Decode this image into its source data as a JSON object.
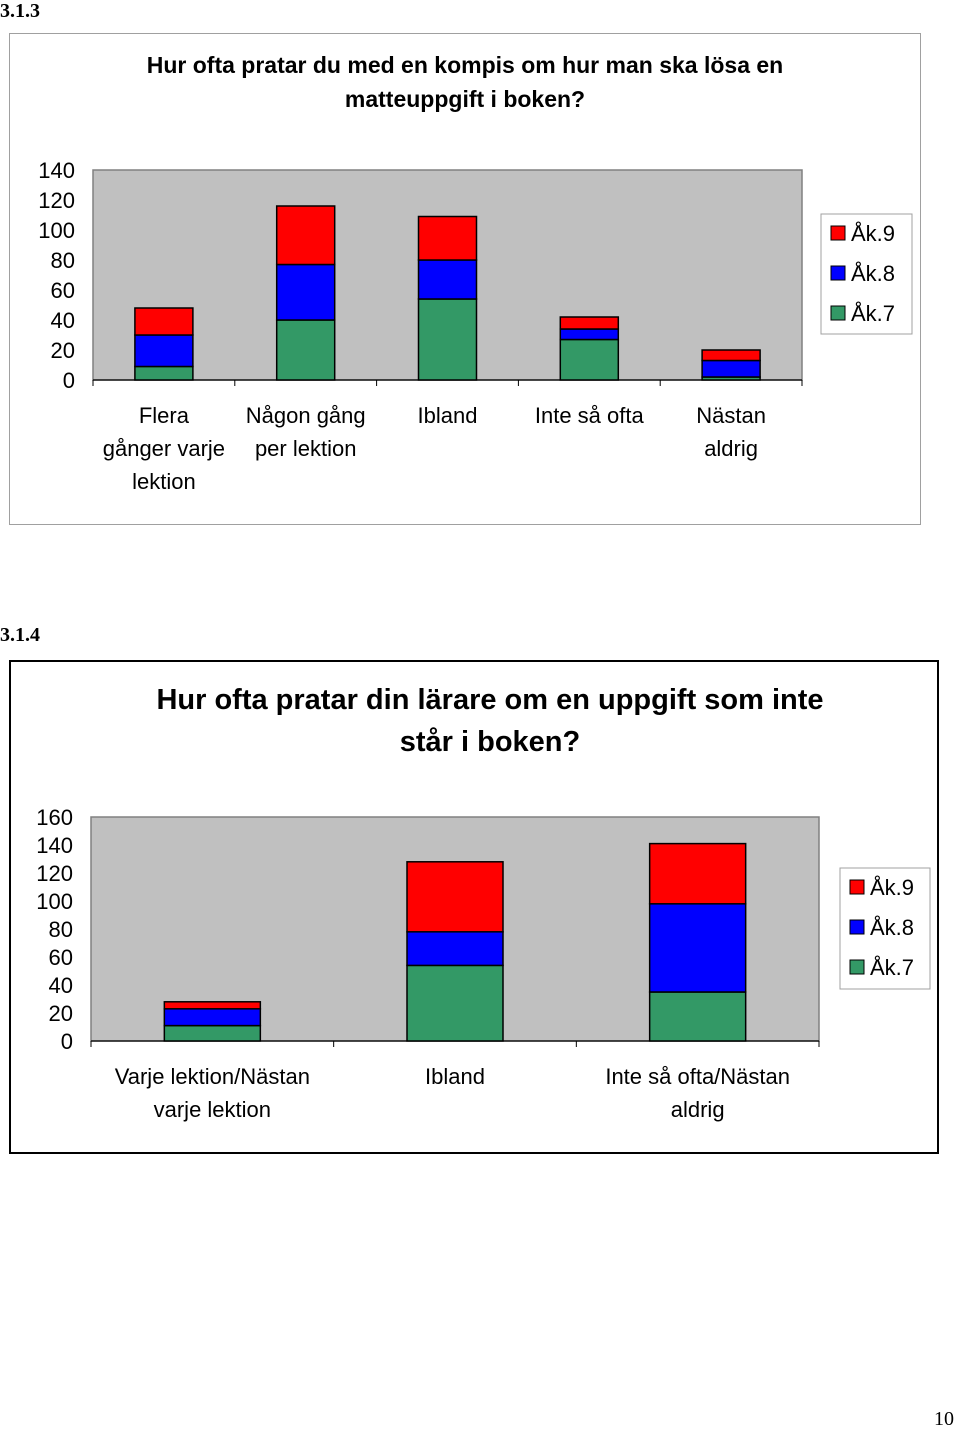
{
  "page_number": "10",
  "charts": [
    {
      "section": "3.1.3",
      "title_lines": [
        "Hur ofta pratar du med en kompis om hur man ska lösa en",
        "matteuppgift i boken?"
      ],
      "category_lines": [
        [
          "Flera",
          "gånger varje",
          "lektion"
        ],
        [
          "Någon gång",
          "per lektion"
        ],
        [
          "Ibland"
        ],
        [
          "Inte så ofta"
        ],
        [
          "Nästan",
          "aldrig"
        ]
      ],
      "y_ticks": [
        "0",
        "20",
        "40",
        "60",
        "80",
        "100",
        "120",
        "140"
      ],
      "legend": [
        "Åk.9",
        "Åk.8",
        "Åk.7"
      ]
    },
    {
      "section": "3.1.4",
      "title_lines": [
        "Hur ofta pratar din lärare om en uppgift som inte",
        "står i boken?"
      ],
      "category_lines": [
        [
          "Varje lektion/Nästan",
          "varje lektion"
        ],
        [
          "Ibland"
        ],
        [
          "Inte så ofta/Nästan",
          "aldrig"
        ]
      ],
      "y_ticks": [
        "0",
        "20",
        "40",
        "60",
        "80",
        "100",
        "120",
        "140",
        "160"
      ],
      "legend": [
        "Åk.9",
        "Åk.8",
        "Åk.7"
      ]
    }
  ],
  "chart_data": [
    {
      "type": "bar",
      "stacked": true,
      "title": "Hur ofta pratar du med en kompis om hur man ska lösa en matteuppgift i boken?",
      "categories": [
        "Flera gånger varje lektion",
        "Någon gång per lektion",
        "Ibland",
        "Inte så ofta",
        "Nästan aldrig"
      ],
      "series": [
        {
          "name": "Åk.7",
          "color": "#339966",
          "values": [
            9,
            40,
            54,
            27,
            2
          ]
        },
        {
          "name": "Åk.8",
          "color": "#0000FF",
          "values": [
            21,
            37,
            26,
            7,
            11
          ]
        },
        {
          "name": "Åk.9",
          "color": "#FF0000",
          "values": [
            18,
            39,
            29,
            8,
            7
          ]
        }
      ],
      "ylim": [
        0,
        140
      ],
      "legend_position": "right",
      "grid": false
    },
    {
      "type": "bar",
      "stacked": true,
      "title": "Hur ofta pratar din lärare om en uppgift som inte står i boken?",
      "categories": [
        "Varje lektion/Nästan varje lektion",
        "Ibland",
        "Inte så ofta/Nästan aldrig"
      ],
      "series": [
        {
          "name": "Åk.7",
          "color": "#339966",
          "values": [
            11,
            54,
            35
          ]
        },
        {
          "name": "Åk.8",
          "color": "#0000FF",
          "values": [
            12,
            24,
            63
          ]
        },
        {
          "name": "Åk.9",
          "color": "#FF0000",
          "values": [
            5,
            50,
            43
          ]
        }
      ],
      "ylim": [
        0,
        160
      ],
      "legend_position": "right",
      "grid": false
    }
  ]
}
